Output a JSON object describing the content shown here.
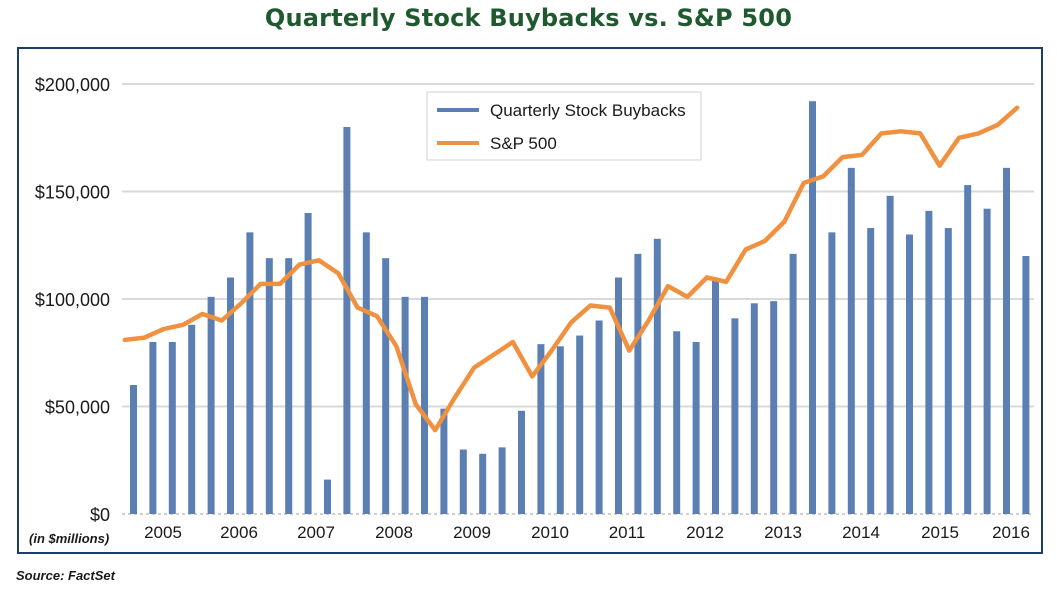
{
  "title": "Quarterly Stock Buybacks vs. S&P 500",
  "source": "Source: FactSet",
  "chart_data": {
    "type": "bar",
    "title": "Quarterly Stock Buybacks vs. S&P 500",
    "yunit_label": "(in $millions)",
    "ylim": [
      0,
      200000
    ],
    "yticks": [
      0,
      50000,
      100000,
      150000,
      200000
    ],
    "ytick_labels": [
      "$0",
      "$50,000",
      "$100,000",
      "$150,000",
      "$200,000"
    ],
    "xtick_labels": [
      "2005",
      "2006",
      "2007",
      "2008",
      "2009",
      "2010",
      "2011",
      "2012",
      "2013",
      "2014",
      "2015",
      "2016"
    ],
    "grid": true,
    "legend_position": "top-center",
    "colors": {
      "bars": "#5b7fb3",
      "line": "#f0913f",
      "frame": "#1f3c6e",
      "title": "#1e5a2e"
    },
    "series": [
      {
        "name": "Quarterly Stock Buybacks",
        "type": "bar",
        "values": [
          60000,
          80000,
          80000,
          88000,
          101000,
          110000,
          131000,
          119000,
          119000,
          140000,
          16000,
          180000,
          131000,
          119000,
          101000,
          101000,
          49000,
          30000,
          28000,
          31000,
          48000,
          79000,
          78000,
          83000,
          90000,
          110000,
          121000,
          128000,
          85000,
          80000,
          109000,
          91000,
          98000,
          99000,
          121000,
          192000,
          131000,
          161000,
          133000,
          148000,
          130000,
          141000,
          133000,
          153000,
          142000,
          161000,
          120000
        ]
      },
      {
        "name": "S&P 500",
        "type": "line",
        "values": [
          81000,
          82000,
          86000,
          88000,
          93000,
          90000,
          98000,
          107000,
          107000,
          116000,
          118000,
          112000,
          96000,
          92000,
          78000,
          51000,
          39000,
          54000,
          68000,
          74000,
          80000,
          64000,
          76000,
          89000,
          97000,
          96000,
          76000,
          90000,
          106000,
          101000,
          110000,
          108000,
          123000,
          127000,
          136000,
          154000,
          157000,
          166000,
          167000,
          177000,
          178000,
          177000,
          162000,
          175000,
          177000,
          181000,
          189000
        ]
      }
    ]
  }
}
